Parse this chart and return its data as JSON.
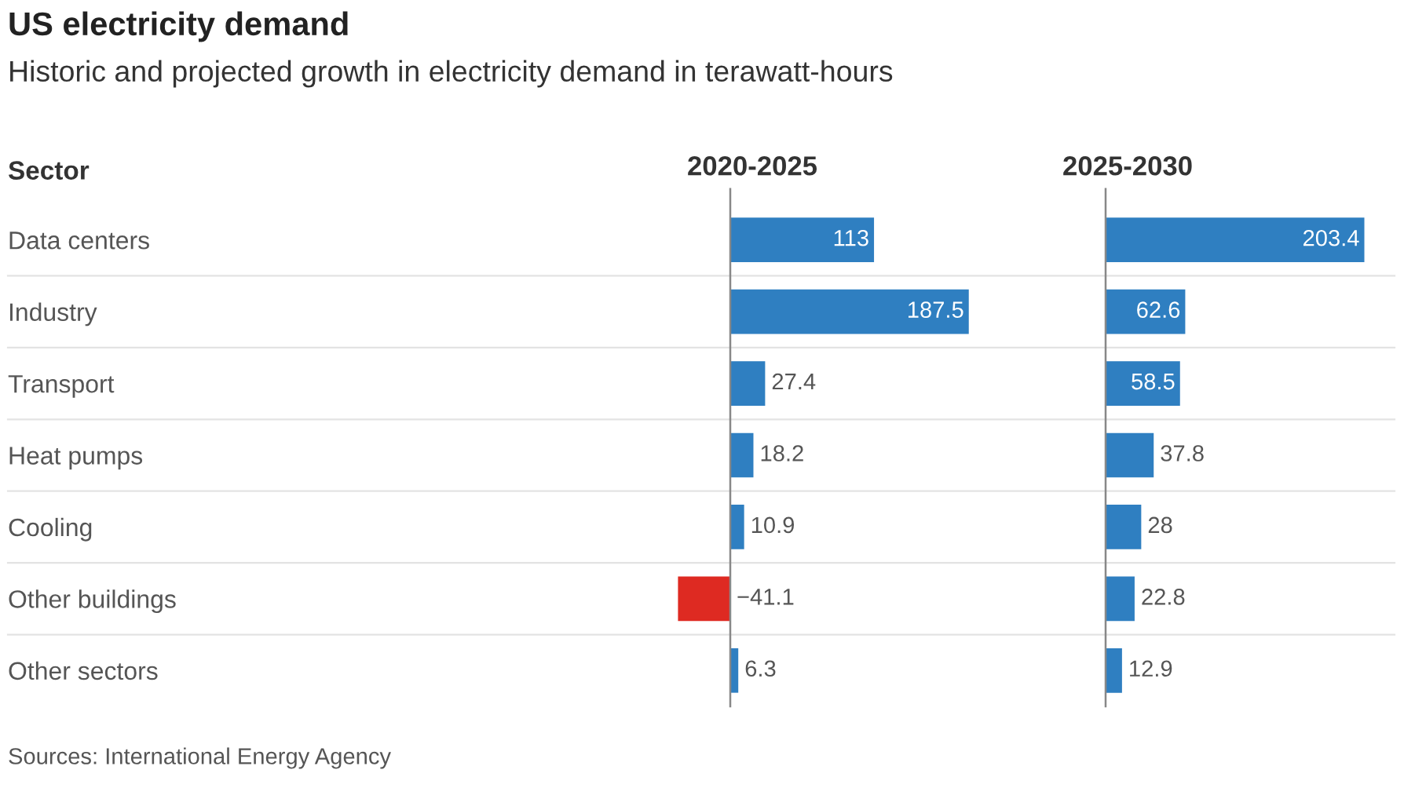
{
  "chart_data": [
    {
      "type": "bar",
      "orientation": "horizontal",
      "title": "US electricity demand",
      "subtitle": "Historic and projected growth in electricity demand in terawatt-hours",
      "ylabel": "Sector",
      "xlabel": "2020-2025",
      "data_labels": true,
      "categories": [
        "Data centers",
        "Industry",
        "Transport",
        "Heat pumps",
        "Cooling",
        "Other buildings",
        "Other sectors"
      ],
      "values": [
        113,
        187.5,
        27.4,
        18.2,
        10.9,
        -41.1,
        6.3
      ],
      "colors": [
        "#2f7fc1",
        "#2f7fc1",
        "#2f7fc1",
        "#2f7fc1",
        "#2f7fc1",
        "#de2a22",
        "#2f7fc1"
      ],
      "annotations": [
        "Sources: International Energy Agency"
      ]
    },
    {
      "type": "bar",
      "orientation": "horizontal",
      "xlabel": "2025-2030",
      "data_labels": true,
      "categories": [
        null,
        null,
        null,
        null,
        null,
        null,
        null
      ],
      "values": [
        203.4,
        62.6,
        58.5,
        37.8,
        28,
        22.8,
        12.9
      ],
      "color": "#2f7fc1"
    }
  ]
}
